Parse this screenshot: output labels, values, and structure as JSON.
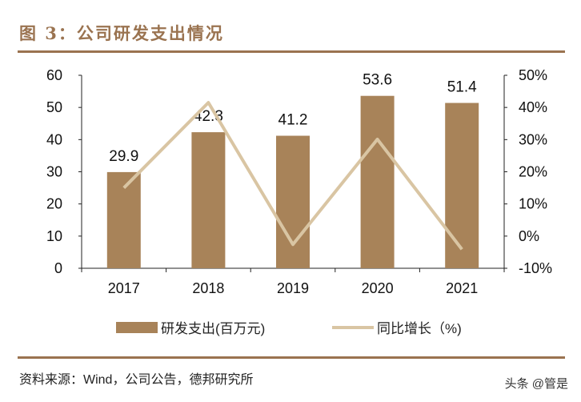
{
  "title": "图 3：公司研发支出情况",
  "source": "资料来源：Wind，公司公告，德邦研究所",
  "watermark": "头条 @管是",
  "chart_data": {
    "type": "bar+line",
    "categories": [
      "2017",
      "2018",
      "2019",
      "2020",
      "2021"
    ],
    "series": [
      {
        "name": "研发支出(百万元)",
        "type": "bar",
        "axis": "left",
        "values": [
          29.9,
          42.3,
          41.2,
          53.6,
          51.4
        ],
        "color": "#a88359",
        "data_labels": [
          "29.9",
          "42.3",
          "41.2",
          "53.6",
          "51.4"
        ]
      },
      {
        "name": "同比增长（%)",
        "type": "line",
        "axis": "right",
        "values": [
          15,
          41.5,
          -2.6,
          30.1,
          -4.1
        ],
        "color": "#d9c5a3"
      }
    ],
    "left_axis": {
      "ylim": [
        0,
        60
      ],
      "ticks": [
        "0",
        "10",
        "20",
        "30",
        "40",
        "50",
        "60"
      ]
    },
    "right_axis": {
      "ylim": [
        -10,
        50
      ],
      "ticks": [
        "-10%",
        "0%",
        "10%",
        "20%",
        "30%",
        "40%",
        "50%"
      ]
    },
    "grid": false,
    "legend": "bottom"
  }
}
